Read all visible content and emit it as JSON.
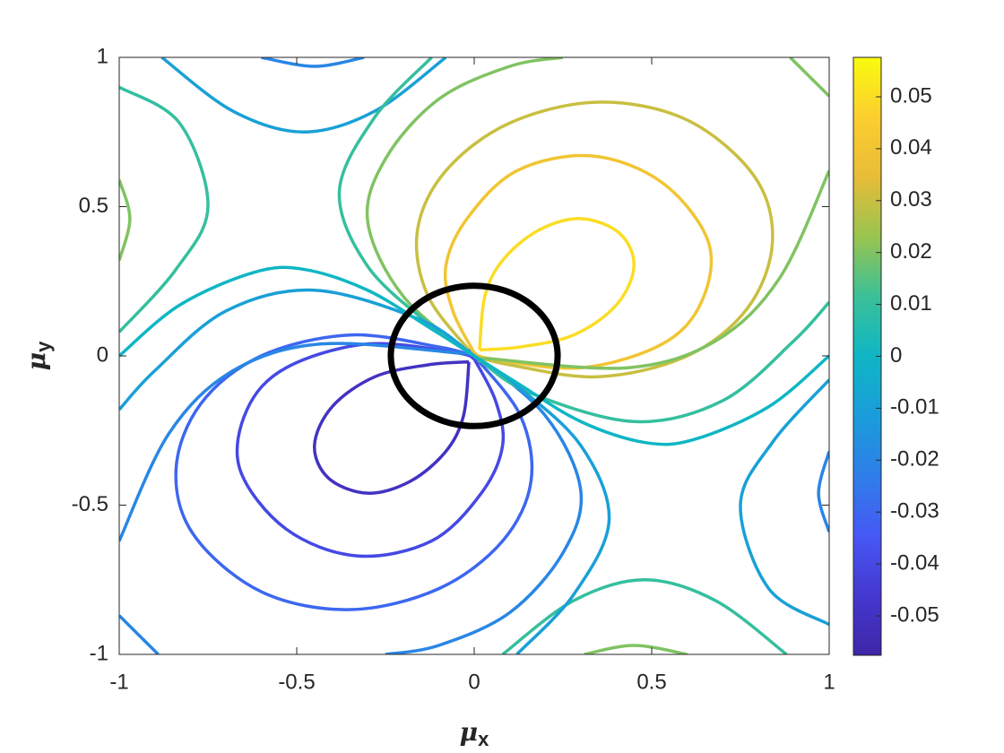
{
  "chart_data": {
    "type": "contour",
    "xlabel": {
      "symbol": "μ",
      "subscript": "x"
    },
    "ylabel": {
      "symbol": "μ",
      "subscript": "y"
    },
    "xlim": [
      -1,
      1
    ],
    "xticks": [
      -1,
      -0.5,
      0,
      0.5,
      1
    ],
    "ylim": [
      -1,
      1
    ],
    "yticks": [
      -1,
      -0.5,
      0,
      0.5,
      1
    ],
    "clim": [
      -0.0576,
      0.0576
    ],
    "cticks": [
      -0.05,
      -0.04,
      -0.03,
      -0.02,
      -0.01,
      0,
      0.01,
      0.02,
      0.03,
      0.04,
      0.05
    ],
    "colormap": [
      "#3e26a8",
      "#4438cf",
      "#4658f5",
      "#2f7ee9",
      "#1a9dda",
      "#0fb6c4",
      "#3bc098",
      "#99c44f",
      "#e8bc37",
      "#fcce2f",
      "#f9fb0e"
    ],
    "circle": {
      "cx": 0,
      "cy": 0,
      "r": 0.235,
      "color": "#000000"
    },
    "contours": [
      {
        "level": 0.05,
        "x": [
          0.015,
          0.03,
          0.08,
          0.18,
          0.3,
          0.41,
          0.45,
          0.4,
          0.28,
          0.13,
          0.015
        ],
        "y": [
          0.02,
          0.2,
          0.32,
          0.42,
          0.46,
          0.41,
          0.3,
          0.17,
          0.07,
          0.03,
          0.02
        ]
      },
      {
        "level": -0.05,
        "x": [
          -0.015,
          -0.03,
          -0.08,
          -0.18,
          -0.3,
          -0.41,
          -0.45,
          -0.4,
          -0.28,
          -0.13,
          -0.015
        ],
        "y": [
          -0.02,
          -0.2,
          -0.32,
          -0.42,
          -0.46,
          -0.41,
          -0.3,
          -0.17,
          -0.07,
          -0.03,
          -0.02
        ]
      },
      {
        "level": 0.04,
        "x": [
          0,
          -0.06,
          -0.08,
          -0.02,
          0.12,
          0.33,
          0.53,
          0.66,
          0.64,
          0.53,
          0.3,
          0.05,
          0
        ],
        "y": [
          0.01,
          0.15,
          0.3,
          0.46,
          0.62,
          0.67,
          0.58,
          0.38,
          0.18,
          0.04,
          -0.04,
          -0.01,
          0.01
        ]
      },
      {
        "level": -0.04,
        "x": [
          0,
          0.06,
          0.08,
          0.02,
          -0.12,
          -0.33,
          -0.53,
          -0.66,
          -0.64,
          -0.53,
          -0.3,
          -0.05,
          0
        ],
        "y": [
          -0.01,
          -0.15,
          -0.3,
          -0.46,
          -0.62,
          -0.67,
          -0.58,
          -0.38,
          -0.18,
          -0.04,
          0.04,
          0.01,
          -0.01
        ]
      },
      {
        "level": 0.03,
        "x": [
          0,
          -0.13,
          -0.16,
          -0.08,
          0.1,
          0.35,
          0.6,
          0.79,
          0.84,
          0.77,
          0.6,
          0.35,
          0.1,
          0
        ],
        "y": [
          0,
          0.2,
          0.42,
          0.62,
          0.78,
          0.85,
          0.79,
          0.6,
          0.38,
          0.16,
          0,
          -0.07,
          -0.03,
          0
        ]
      },
      {
        "level": -0.03,
        "x": [
          0,
          0.13,
          0.16,
          0.08,
          -0.1,
          -0.35,
          -0.6,
          -0.79,
          -0.84,
          -0.77,
          -0.6,
          -0.35,
          -0.1,
          0
        ],
        "y": [
          0,
          -0.2,
          -0.42,
          -0.62,
          -0.78,
          -0.85,
          -0.79,
          -0.6,
          -0.38,
          -0.16,
          0,
          0.07,
          0.03,
          0
        ]
      },
      {
        "level": 0.02,
        "x": [
          0.25,
          0.1,
          -0.1,
          -0.25,
          -0.3,
          -0.2,
          0,
          0.05,
          0.43,
          0.68,
          0.86,
          1
        ],
        "y": [
          1,
          0.97,
          0.86,
          0.66,
          0.45,
          0.2,
          0,
          -0.01,
          -0.04,
          0.05,
          0.26,
          0.62
        ]
      },
      {
        "level": -0.02,
        "x": [
          -0.25,
          -0.1,
          0.1,
          0.25,
          0.3,
          0.2,
          0,
          -0.05,
          -0.43,
          -0.68,
          -0.86,
          -1
        ],
        "y": [
          -1,
          -0.97,
          -0.86,
          -0.66,
          -0.45,
          -0.2,
          0,
          0.01,
          0.04,
          -0.05,
          -0.26,
          -0.62
        ]
      },
      {
        "level": 0.02,
        "x": [
          0.89,
          1
        ],
        "y": [
          1,
          0.87
        ]
      },
      {
        "level": -0.02,
        "x": [
          -0.89,
          -1
        ],
        "y": [
          -1,
          -0.87
        ]
      },
      {
        "level": 0.02,
        "x": [
          -1,
          -0.97,
          -1
        ],
        "y": [
          0.59,
          0.46,
          0.32
        ]
      },
      {
        "level": -0.02,
        "x": [
          1,
          0.97,
          1
        ],
        "y": [
          -0.59,
          -0.46,
          -0.32
        ]
      },
      {
        "level": 0.02,
        "x": [
          0.31,
          0.45,
          0.6
        ],
        "y": [
          -1,
          -0.97,
          -1
        ]
      },
      {
        "level": -0.02,
        "x": [
          -0.31,
          -0.45,
          -0.6
        ],
        "y": [
          1,
          0.97,
          1
        ]
      },
      {
        "level": 0.01,
        "x": [
          -1,
          -0.83,
          -0.75,
          -0.84,
          -1
        ],
        "y": [
          0.9,
          0.78,
          0.5,
          0.29,
          0.08
        ]
      },
      {
        "level": -0.01,
        "x": [
          1,
          0.83,
          0.75,
          0.84,
          1
        ],
        "y": [
          -0.9,
          -0.78,
          -0.5,
          -0.29,
          -0.08
        ]
      },
      {
        "level": 0.01,
        "x": [
          0.08,
          0.28,
          0.48,
          0.68,
          0.88
        ],
        "y": [
          -1,
          -0.82,
          -0.75,
          -0.82,
          -1
        ]
      },
      {
        "level": -0.01,
        "x": [
          -0.08,
          -0.28,
          -0.48,
          -0.68,
          -0.88
        ],
        "y": [
          1,
          0.82,
          0.75,
          0.82,
          1
        ]
      },
      {
        "level": 0.01,
        "x": [
          -0.12,
          -0.28,
          -0.38,
          -0.3,
          -0.12,
          0,
          0.15,
          0.45,
          0.7,
          0.9,
          1
        ],
        "y": [
          1,
          0.8,
          0.55,
          0.3,
          0.1,
          0,
          -0.12,
          -0.22,
          -0.15,
          0.05,
          0.18
        ]
      },
      {
        "level": -0.01,
        "x": [
          0.12,
          0.28,
          0.38,
          0.3,
          0.12,
          0,
          -0.15,
          -0.45,
          -0.7,
          -0.9,
          -1
        ],
        "y": [
          -1,
          -0.8,
          -0.55,
          -0.3,
          -0.1,
          0,
          0.12,
          0.22,
          0.15,
          -0.05,
          -0.18
        ]
      },
      {
        "level": 0,
        "x": [
          -1,
          -0.83,
          -0.62,
          -0.48,
          -0.3,
          -0.12,
          0,
          0.12,
          0.3,
          0.48,
          0.62,
          0.83,
          1
        ],
        "y": [
          0,
          0.17,
          0.28,
          0.29,
          0.22,
          0.09,
          0,
          -0.09,
          -0.22,
          -0.29,
          -0.28,
          -0.17,
          0
        ]
      }
    ]
  }
}
